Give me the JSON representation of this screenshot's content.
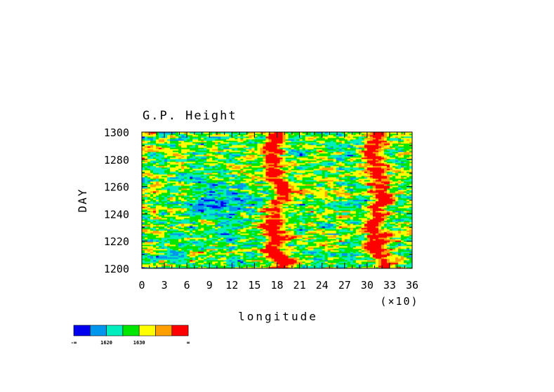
{
  "chart_data": {
    "type": "heatmap",
    "title": "G.P. Height",
    "xlabel": "longitude",
    "ylabel": "DAY",
    "x_scale_note": "(×10)",
    "xlim": [
      0,
      36
    ],
    "ylim": [
      1200,
      1300
    ],
    "x_ticks": [
      "0",
      "3",
      "6",
      "9",
      "12",
      "15",
      "18",
      "21",
      "24",
      "27",
      "30",
      "33",
      "36"
    ],
    "y_ticks": [
      "1200",
      "1220",
      "1240",
      "1260",
      "1280",
      "1300"
    ],
    "colorbar": {
      "colors": [
        "#0000ee",
        "#0096ee",
        "#00eebe",
        "#00e600",
        "#ffff00",
        "#ffa000",
        "#ff0000"
      ],
      "labels": [
        "-∞",
        "1620",
        "1630",
        "∞"
      ]
    },
    "pattern": {
      "description_free_values": true,
      "high_bands_x": [
        18,
        31.5
      ],
      "high_band_width": 1.4,
      "low_region_center": [
        11,
        1250
      ],
      "low_region_radius": [
        4.5,
        14
      ]
    }
  }
}
